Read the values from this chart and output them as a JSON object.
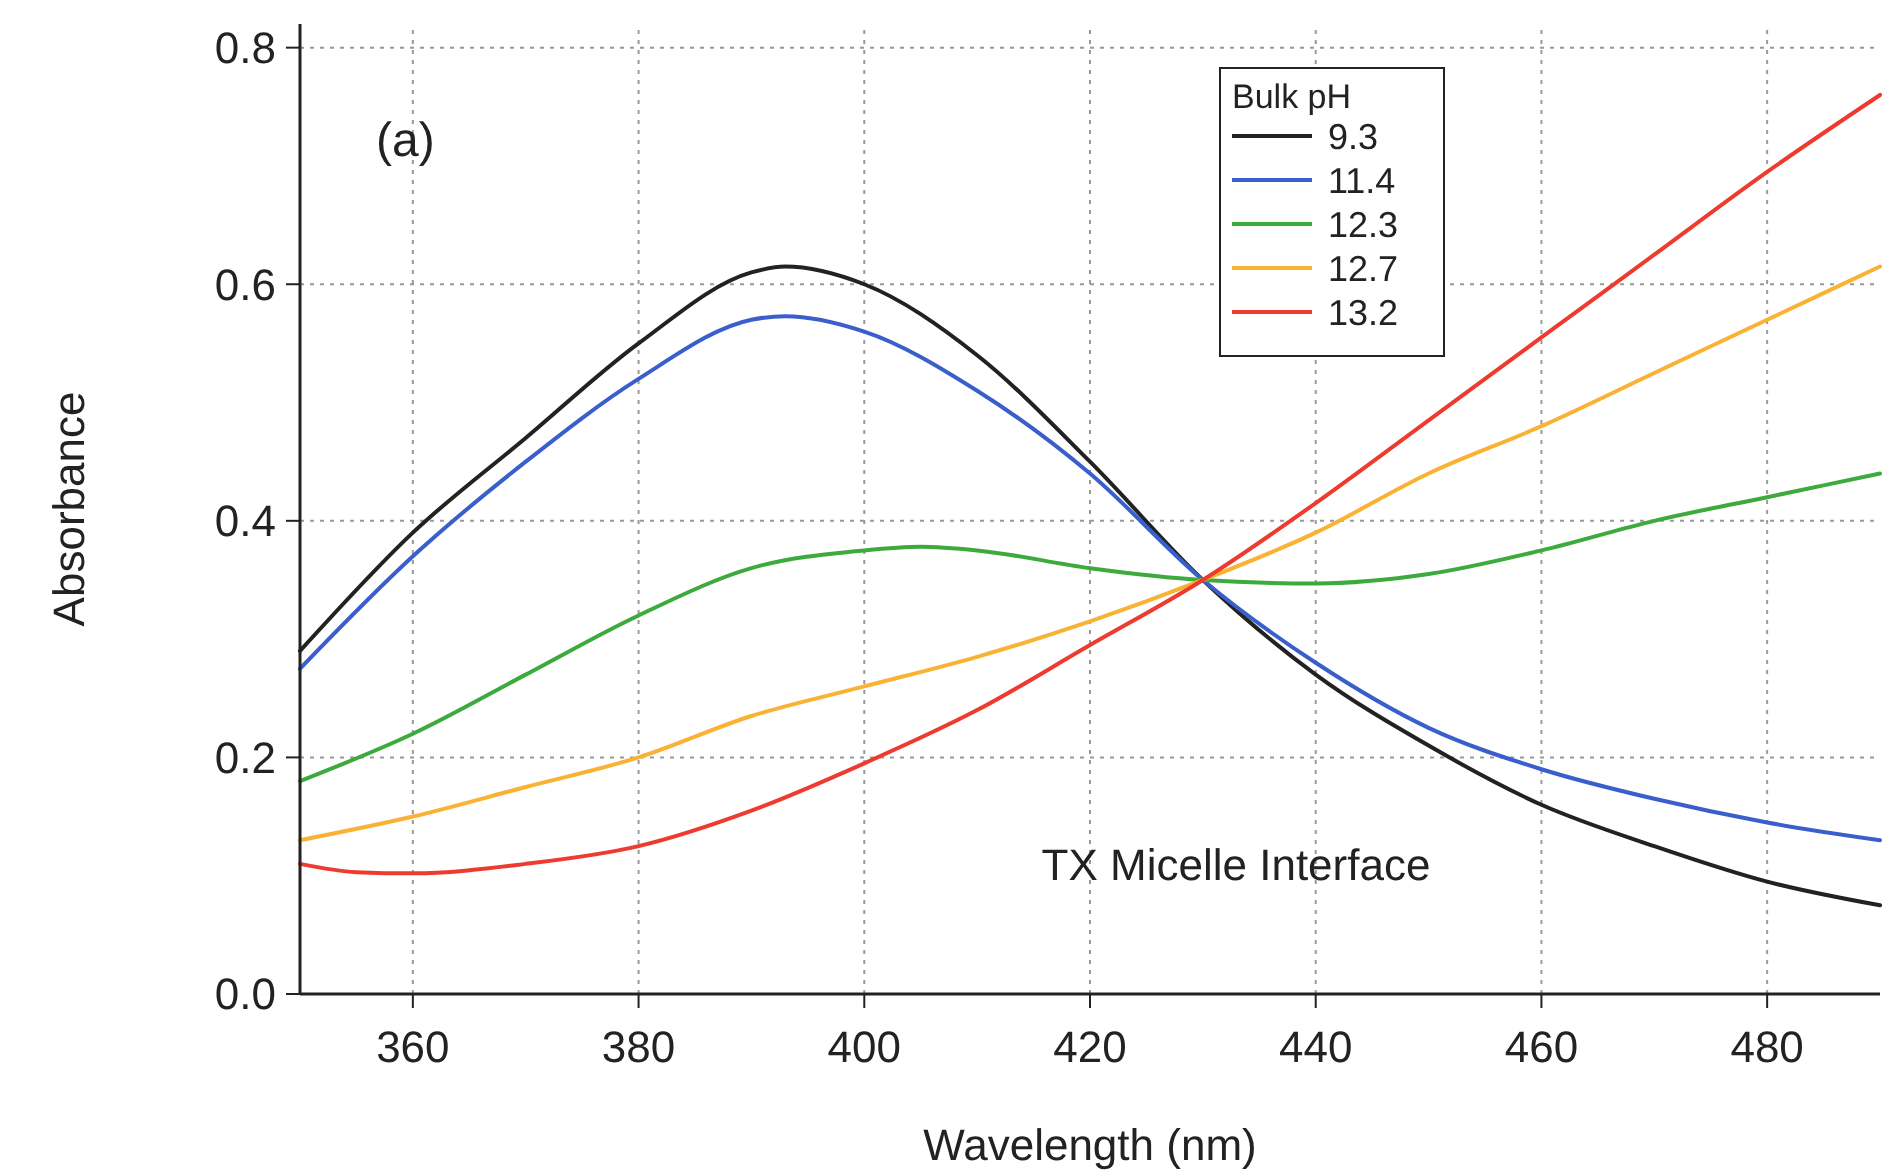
{
  "chart_data": {
    "type": "line",
    "xlabel": "Wavelength (nm)",
    "ylabel": "Absorbance",
    "legend_title": "Bulk pH",
    "legend": "top right",
    "grid": true,
    "marker": "none",
    "line_style": "solid",
    "xlim": [
      350,
      490
    ],
    "xticks": [
      360,
      380,
      400,
      420,
      440,
      460,
      480
    ],
    "ylim": [
      0,
      0.82
    ],
    "yticks": [
      {
        "value": 0,
        "label": "0.0"
      },
      {
        "value": 0.2,
        "label": "0.2"
      },
      {
        "value": 0.4,
        "label": "0.4"
      },
      {
        "value": 0.6,
        "label": "0.6"
      },
      {
        "value": 0.8,
        "label": "0.8"
      }
    ],
    "annotations": [
      "(a)",
      "TX Micelle Interface"
    ],
    "series": [
      {
        "name": "9.3",
        "color": "#222222",
        "x": [
          350,
          360,
          370,
          380,
          390,
          393,
          400,
          410,
          420,
          430,
          440,
          450,
          460,
          470,
          480,
          490
        ],
        "values": [
          0.29,
          0.39,
          0.47,
          0.55,
          0.61,
          0.615,
          0.6,
          0.54,
          0.45,
          0.35,
          0.27,
          0.21,
          0.16,
          0.125,
          0.095,
          0.075
        ]
      },
      {
        "name": "11.4",
        "color": "#3a5fcd",
        "x": [
          350,
          360,
          370,
          380,
          390,
          393,
          400,
          410,
          420,
          430,
          440,
          450,
          460,
          470,
          480,
          490
        ],
        "values": [
          0.275,
          0.37,
          0.45,
          0.52,
          0.57,
          0.573,
          0.56,
          0.51,
          0.44,
          0.35,
          0.28,
          0.225,
          0.19,
          0.165,
          0.145,
          0.13
        ]
      },
      {
        "name": "12.3",
        "color": "#3daa3d",
        "x": [
          350,
          360,
          370,
          380,
          390,
          400,
          405,
          410,
          420,
          430,
          440,
          450,
          460,
          470,
          480,
          490
        ],
        "values": [
          0.18,
          0.22,
          0.27,
          0.32,
          0.36,
          0.375,
          0.378,
          0.375,
          0.36,
          0.35,
          0.347,
          0.355,
          0.375,
          0.4,
          0.42,
          0.44
        ]
      },
      {
        "name": "12.7",
        "color": "#f9b233",
        "x": [
          350,
          360,
          370,
          380,
          390,
          400,
          410,
          420,
          430,
          440,
          450,
          460,
          470,
          480,
          490
        ],
        "values": [
          0.13,
          0.15,
          0.175,
          0.2,
          0.235,
          0.26,
          0.285,
          0.315,
          0.35,
          0.39,
          0.44,
          0.48,
          0.525,
          0.57,
          0.615
        ]
      },
      {
        "name": "13.2",
        "color": "#ee3b2f",
        "x": [
          350,
          355,
          360,
          370,
          380,
          390,
          400,
          410,
          420,
          430,
          440,
          450,
          460,
          470,
          480,
          490
        ],
        "values": [
          0.11,
          0.103,
          0.102,
          0.11,
          0.125,
          0.155,
          0.195,
          0.24,
          0.295,
          0.35,
          0.415,
          0.485,
          0.555,
          0.625,
          0.695,
          0.76
        ]
      }
    ]
  }
}
